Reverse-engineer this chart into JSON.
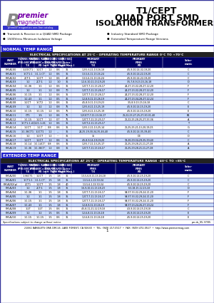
{
  "title_line1": "T1/CEPT",
  "title_line2": "QUAD PORT SMD",
  "title_line3": "ISOLATION TRANSFORMERS",
  "bullets_left": [
    "●  Transmit & Receive in a QUAD SMD Package",
    "●  1500Vrms Minimum Isolation Voltage"
  ],
  "bullets_right": [
    "●  Industry Standard SMD Package",
    "●  Extended Temperature Range Versions"
  ],
  "normal_header": "NORMAL TEMP RANGE",
  "normal_spec_header": "ELECTRICAL SPECIFICATIONS AT 25°C - OPERATING TEMPERATURE RANGE 0°C TO +70°C",
  "normal_col_headers_row1": [
    "PART",
    "TURNS RATIO",
    "TURNS RATIO",
    "PRI - OCL",
    "PRI - SEC",
    "PRI - SEC",
    "PRIMARY",
    "",
    ""
  ],
  "normal_col_headers_row2": [
    "NUMBER",
    "(PRI:SEC ±3%)",
    "(PRI:SEC ±3%)",
    "TX&RX",
    "TX&RX L",
    "Outer",
    "PINS",
    "",
    "Schematic"
  ],
  "normal_col_headers_row3": [
    "",
    "TX",
    "RX",
    "(mH TYP.)",
    "(μH Max.)",
    "(μH Max.)",
    "TX",
    "RX",
    ""
  ],
  "normal_rows": [
    [
      "PM-A100",
      "1:2OCT1",
      "1:2CT",
      "1.2",
      "0.6",
      "35",
      "1,2(5,6,11-13,16,18",
      "4,5,9,10,14-32,19,20",
      "C"
    ],
    [
      "PM-A101",
      "1:CT1:1",
      "1:1-1:CT",
      "1.2",
      "0.6",
      "35",
      "1,3,5,6,11-13,16,24",
      "4,5,9,10,14,22,19,20",
      "C"
    ],
    [
      "PM-A102",
      "2CT:1",
      "1:2CT",
      "1.2",
      "0.6",
      "40",
      "1,3,5,6,11-13,16,24",
      "4,5,9,10,14-22,19,20",
      "C"
    ],
    [
      "PM-A103",
      "1:2",
      "2CT:1",
      "1.2",
      "1.0",
      "35",
      "1,2,6-10,11-13,19,20",
      "3,5,7,8,9,13-15,16,18",
      "D"
    ],
    [
      "PM-A104",
      "1:1.36",
      "1:1",
      "1.2",
      "0.6",
      "35",
      "1,2CT,7,11-13,26,17",
      "24,27,23,32,28,27,22,20",
      "F"
    ],
    [
      "PM-A105",
      "1:2",
      "1:1",
      "1.2",
      "0.8",
      "70",
      "1,2CT,7,11-13,26,17",
      "24,27,23,32,28,27,22,20",
      "F"
    ],
    [
      "PM-A106",
      "1:1.15",
      "1:1",
      "1.2",
      "0.6",
      "35",
      "1,2CT,7,11-13,26,17",
      "24,27,23,32,28,27,22,20",
      "F"
    ],
    [
      "PM-A107",
      "1:2.43",
      "1:1",
      "1.2",
      "0.5",
      "35",
      "1,2,8,9,11-13,26,19",
      "24,27,23,34,28,27,22,24",
      "F"
    ],
    [
      "PM-A108",
      "1:2CT",
      "1:CT2",
      "1.2",
      "0.6",
      "35",
      "4,5,8,9,11-13,19,23",
      "3,5,8,9,13-15,16,18",
      "C"
    ],
    [
      "PM-A109",
      "1:2",
      "1:2",
      "1.2",
      "0.8",
      "75",
      "1,2(5,8,11-13,25,19",
      "4,5,9,10,14-15,19,20",
      "E"
    ],
    [
      "PM-A110",
      "1:1.15",
      "1:1.15",
      "1.2",
      "0.6",
      "75",
      "1,2(5,8,11-13,25,19",
      "4,5,9,10,14-15,19,20",
      "E"
    ],
    [
      "PM-A111",
      "CT1",
      "1:S",
      "1.2",
      "0.6",
      "75",
      "1,2(2CT,7,11-13,16,17",
      "21,22,23,27,25,27,30,31,40",
      "B1"
    ],
    [
      "PM-A112",
      "1:1.15",
      "1:2CT",
      "1.2",
      "0.7",
      "75",
      "1,2CT,7,11-13,25,17",
      "21,22,25,28,25,27,33,36",
      "A"
    ],
    [
      "PM-A113",
      "1:CT1:1:41",
      "1:21:1:41",
      "1.2",
      "0.6",
      "35",
      "1,2CT,2,11-13,25,17",
      "---",
      "T"
    ],
    [
      "PM-A114",
      "1:2CT",
      "1:2-T",
      "0.8",
      "0.6",
      "35",
      "1,2(5,2,11-13,25,14",
      "21,25,25,21,13-20,19,25",
      "G"
    ],
    [
      "PM-A115",
      "1:1.36CT1",
      "1:2CT1",
      "1.2",
      "---",
      "35",
      "24,25,29,30,34,35,46,40",
      "4,5,9,10,14-35,39,40",
      "C"
    ],
    [
      "PM-A116",
      "1:2",
      "1:2CT",
      "1.2",
      "---",
      "35",
      "35",
      "D3",
      "D"
    ],
    [
      "PM-A117",
      "1:2CT",
      "1:2CT",
      "1.2",
      "0.6",
      "35",
      "4,5,8,9,14-19,19,20",
      "19,20,29,34,29,35,39,40",
      "C"
    ],
    [
      "PM-A118",
      "1:1.14",
      "1:1.14CT",
      "0.8",
      "0.6",
      "35",
      "1,2(5,7,11-13,25,17",
      "21,25,29,28,21,11,27,28",
      "A"
    ],
    [
      "PM-A119",
      "1:1.36",
      "1:1.36CT",
      "1.2",
      "0.8",
      "35",
      "1,2CT,7,11-13,16,17",
      "21,25,29,28,21,11,27,28",
      "A"
    ]
  ],
  "extended_header": "EXTENDED TEMP RANGE",
  "extended_spec_header": "ELECTRICAL SPECIFICATIONS AT 25°C - OPERATING TEMPERATURE RANGE -40°C TO +85°C",
  "extended_rows": [
    [
      "PM-A200",
      "1.36CT1",
      "1:2CT",
      "1.5",
      "1.8",
      "35",
      "1,3,5,6,8,11,13,16,18",
      "4,5,9,10,14,15,19,20",
      "C"
    ],
    [
      "PM-A201",
      "1:CT1:1",
      "1:1:1:CT",
      "1.5",
      "1.8",
      "35",
      "1,3,5,6,1,13,50,34",
      "4,5,9,10,14,15,19,20",
      "C"
    ],
    [
      "PM-A202(p)",
      "2CT1",
      "1:2CT",
      "1.5",
      "1.8",
      "40",
      "1,3,5,6,1,13,50,34",
      "4,5,9,10,14,15,19,20",
      "C"
    ],
    [
      "PM-A203",
      "1:2",
      "2CT:1",
      "1.5",
      "1.8",
      "35",
      "1,6,9,10,11-13,18,23",
      "6,3,18,15-12,15,18",
      "D"
    ],
    [
      "PM-A204",
      "1:1.36",
      "1:1",
      "1.5",
      "1.8",
      "35",
      "1,2CT,7,11-13,16-17",
      "5A,5T,33,32,29,24,21,20",
      "F"
    ],
    [
      "PM-A205",
      "1:2",
      "1:1",
      "1.5",
      "1.8",
      "35",
      "1,2CT,7,11-13,16-17",
      "5A,5T,33,32,29,24,21,20",
      "F"
    ],
    [
      "PM-A206",
      "1:1.15",
      "1:1",
      "1.5",
      "1.8",
      "35",
      "1,2CT,7,11-13,16-17",
      "5A,5T,33,32,29,24,21,20",
      "F"
    ],
    [
      "PM-A207",
      "1:1.43",
      "1:1",
      "1.5",
      "1.8",
      "35",
      "1,2,8,9,11-13,16,19",
      "5A,5T,23,24,26,27,20,24",
      "F"
    ],
    [
      "PM-A208",
      "1:2T",
      "1:2T",
      "1.5",
      "0.6",
      "35",
      "4,5,8,11,21,22,19,18",
      "4,3,9,10,14,15,19,18",
      "C"
    ],
    [
      "PM-A209",
      "1:2",
      "1:2",
      "1.5",
      "0.6",
      "35",
      "1,2,6,8,11-13,16,18",
      "4,5,9,10,14,15,19,20",
      "E"
    ],
    [
      "PM-A210",
      "1:1.15",
      "1:1.15",
      "1.5",
      "0.6",
      "35",
      "1,2,6,8,11-13,16,18",
      "4,5,9,10,14,15,19,20",
      "E"
    ]
  ],
  "footer_note": "Specifications subject to change without notice.",
  "footer_address": "21061 BARELETS ORA CIRCLE, LAKE FOREST, CA 92630  •  TEL: (949) 217-0517  •  FAX: (949) 472-0517  •  http://www.premiermag.com",
  "bg_color": "#ffffff",
  "table_header_bg": "#000066",
  "alt_row_bg": "#cce0ff",
  "normal_row_bg": "#ffffff",
  "border_color": "#000066",
  "section_label_bg": "#2222cc",
  "spec_bar_bg": "#222222"
}
